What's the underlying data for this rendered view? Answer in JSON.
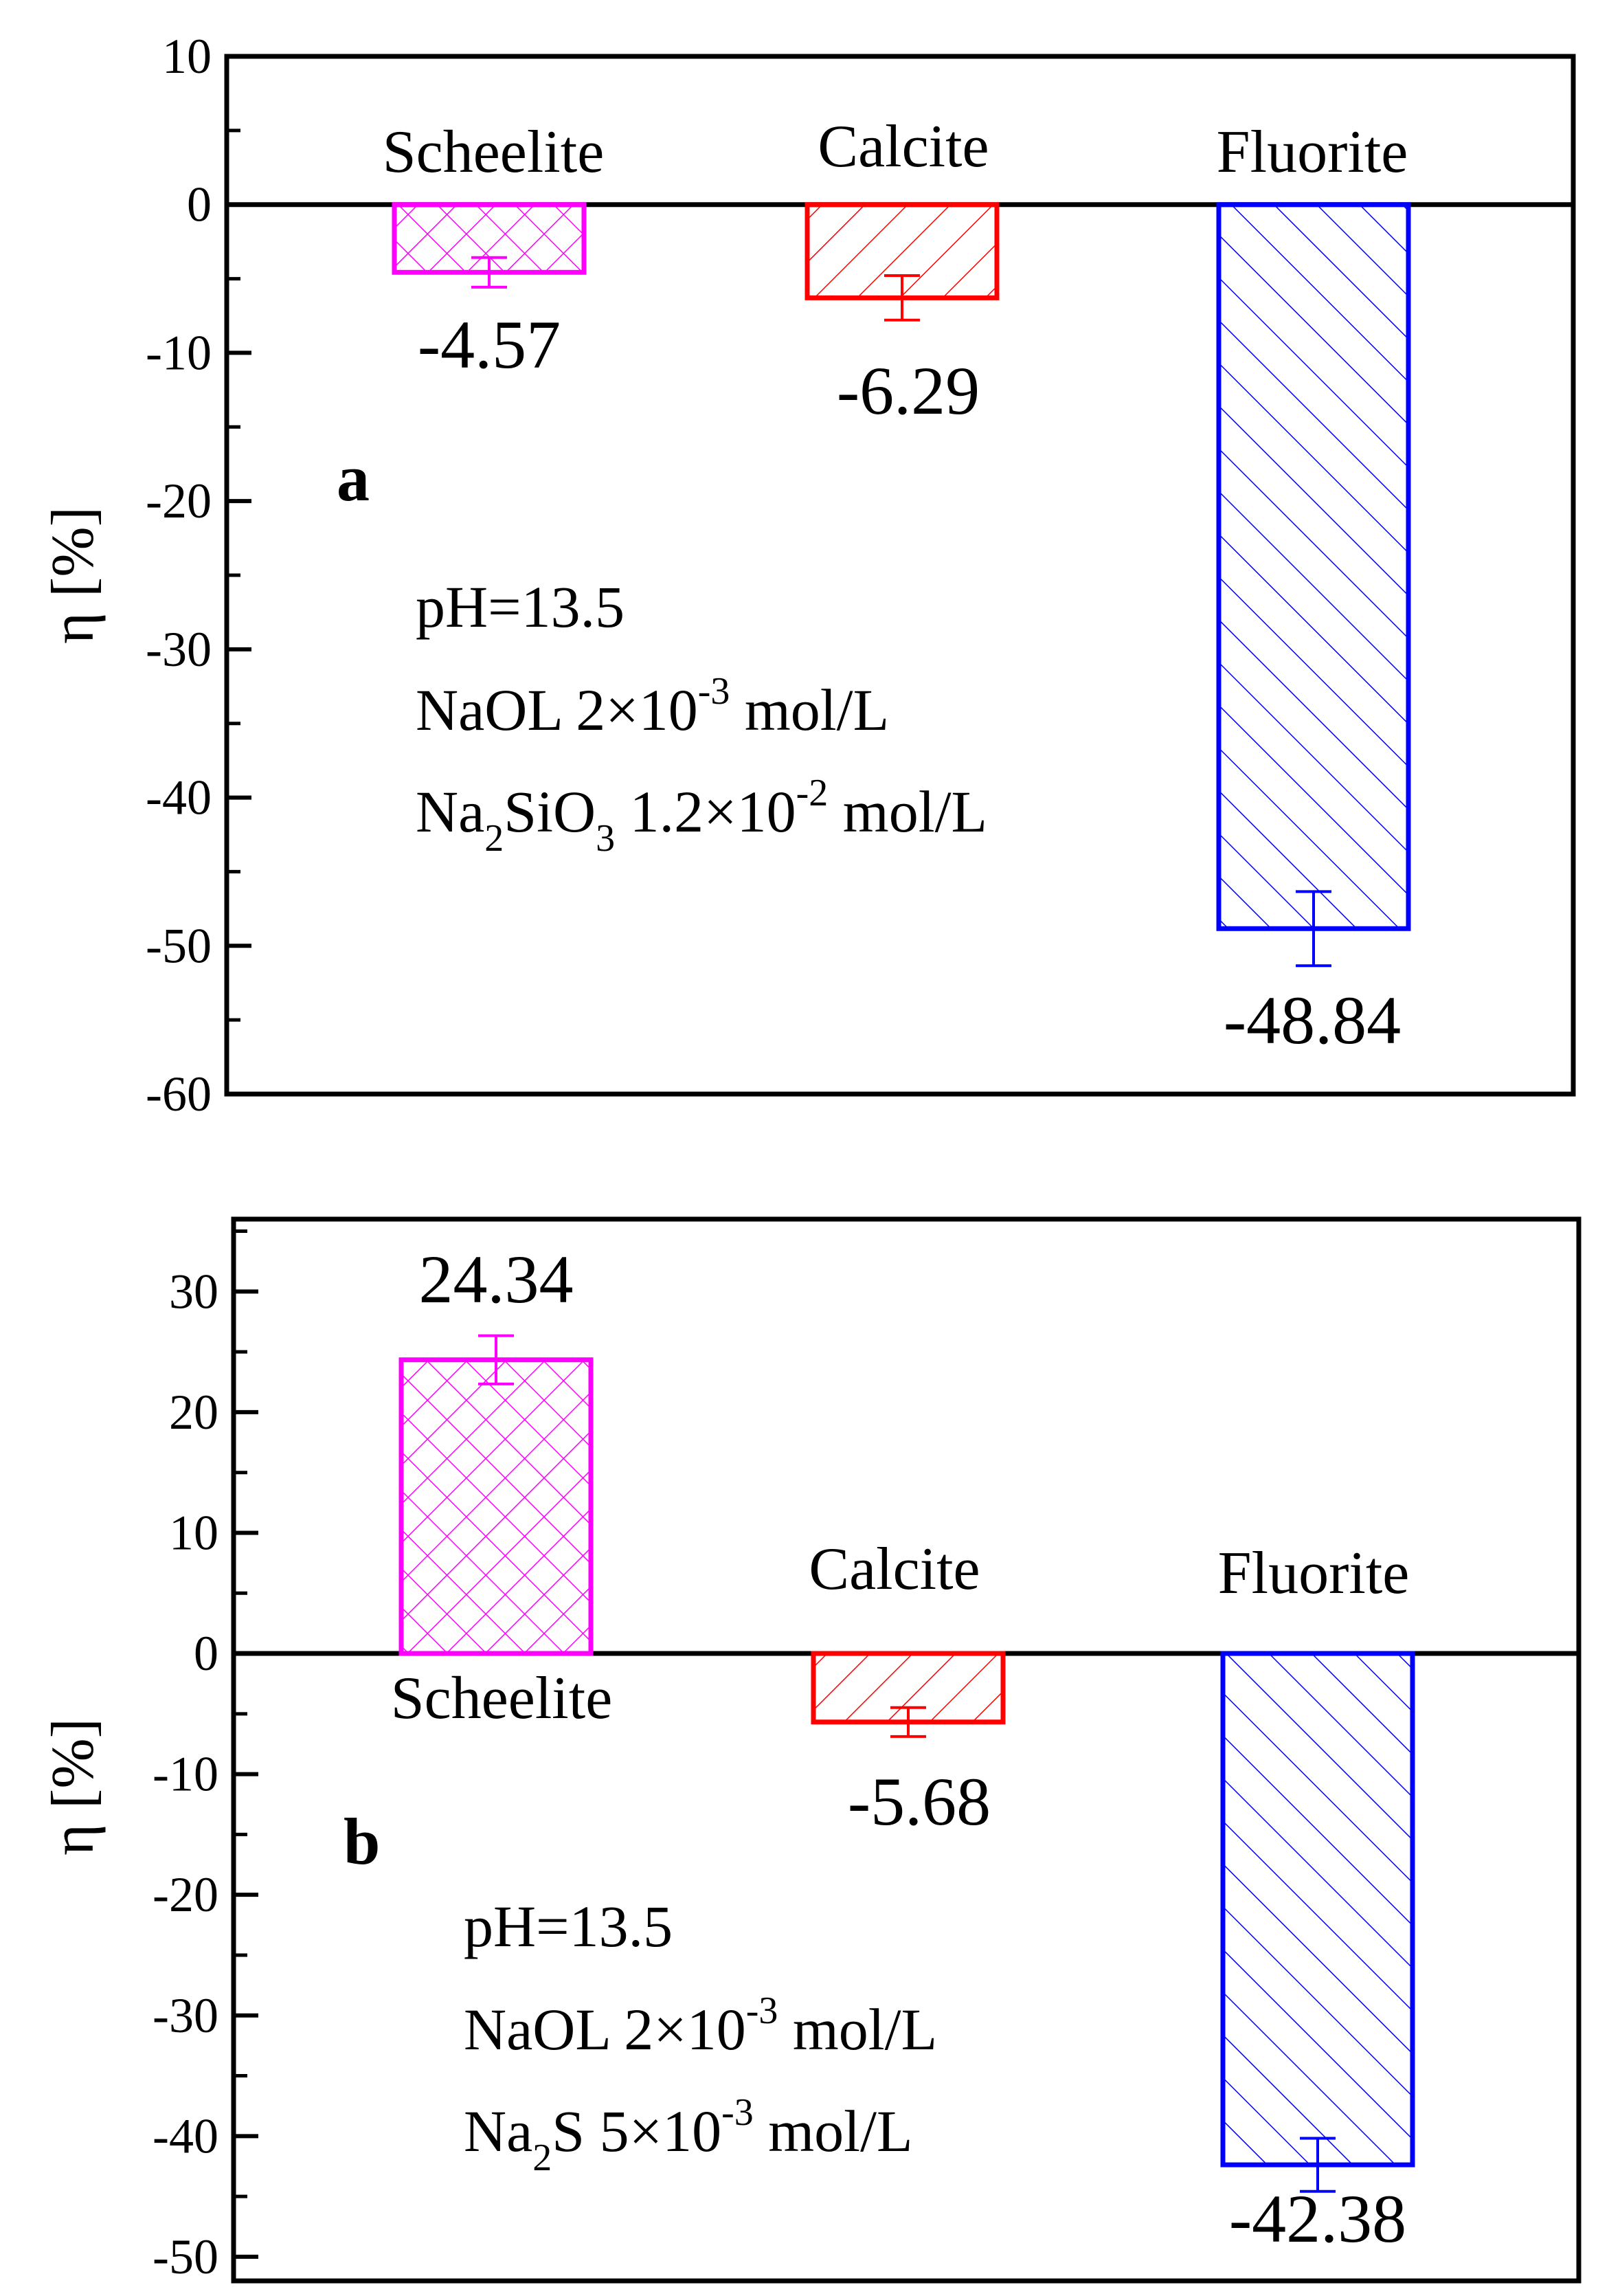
{
  "chart_data": [
    {
      "panel": "a",
      "type": "bar",
      "ylabel": "η [%]",
      "ylim": [
        -60,
        10
      ],
      "yticks": [
        10,
        0,
        -10,
        -20,
        -30,
        -40,
        -50,
        -60
      ],
      "categories": [
        "Scheelite",
        "Calcite",
        "Fluorite"
      ],
      "values": [
        -4.57,
        -6.29,
        -48.84
      ],
      "value_labels": [
        "-4.57",
        "-6.29",
        "-48.84"
      ],
      "errors": [
        1.0,
        1.5,
        2.5
      ],
      "colors": [
        "#ff00ff",
        "#ff0000",
        "#0000ff"
      ],
      "patterns": [
        "crosshatch",
        "diag-down",
        "diag-up"
      ],
      "conditions": {
        "ph": "pH=13.5",
        "naol_prefix": "NaOL 2×10",
        "naol_exp": "-3",
        "naol_unit": " mol/L",
        "dep_a": "Na",
        "dep_sub1": "2",
        "dep_b": "SiO",
        "dep_sub2": "3",
        "dep_c": " 1.2×10",
        "dep_exp": "-2",
        "dep_unit": " mol/L"
      }
    },
    {
      "panel": "b",
      "type": "bar",
      "ylabel": "η [%]",
      "ylim": [
        -52,
        36
      ],
      "yticks": [
        30,
        20,
        10,
        0,
        -10,
        -20,
        -30,
        -40,
        -50
      ],
      "categories": [
        "Scheelite",
        "Calcite",
        "Fluorite"
      ],
      "values": [
        24.34,
        -5.68,
        -42.38
      ],
      "value_labels": [
        "24.34",
        "-5.68",
        "-42.38"
      ],
      "errors": [
        2.0,
        1.2,
        2.2
      ],
      "colors": [
        "#ff00ff",
        "#ff0000",
        "#0000ff"
      ],
      "patterns": [
        "crosshatch",
        "diag-down",
        "diag-up"
      ],
      "conditions": {
        "ph": "pH=13.5",
        "naol_prefix": "NaOL 2×10",
        "naol_exp": "-3",
        "naol_unit": " mol/L",
        "dep_a": "Na",
        "dep_sub1": "2",
        "dep_b": "S 5×10",
        "dep_exp": "-3",
        "dep_unit": " mol/L"
      }
    }
  ]
}
